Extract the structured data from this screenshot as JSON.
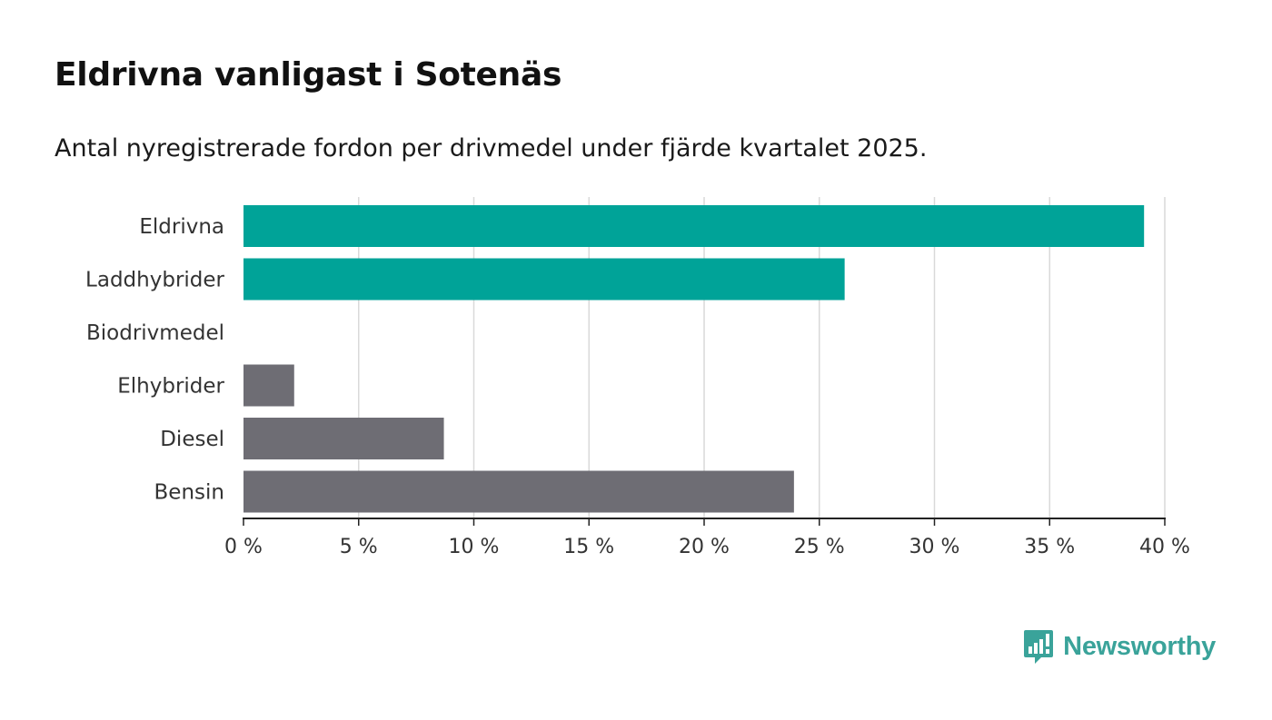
{
  "title": "Eldrivna vanligast i Sotenäs",
  "subtitle": "Antal nyregistrerade fordon per drivmedel under fjärde kvartalet 2025.",
  "brand": {
    "name": "Newsworthy",
    "color": "#3aa39a"
  },
  "colors": {
    "highlight": "#00a398",
    "neutral": "#6e6d74",
    "grid": "#d9d9d9",
    "axis": "#222222"
  },
  "chart_data": {
    "type": "bar",
    "orientation": "horizontal",
    "categories": [
      "Eldrivna",
      "Laddhybrider",
      "Biodrivmedel",
      "Elhybrider",
      "Diesel",
      "Bensin"
    ],
    "values": [
      39.1,
      26.1,
      0,
      2.2,
      8.7,
      23.9
    ],
    "highlighted": [
      true,
      true,
      true,
      false,
      false,
      false
    ],
    "xlim": [
      0,
      40
    ],
    "xticks": [
      0,
      5,
      10,
      15,
      20,
      25,
      30,
      35,
      40
    ],
    "xtick_labels": [
      "0 %",
      "5 %",
      "10 %",
      "15 %",
      "20 %",
      "25 %",
      "30 %",
      "35 %",
      "40 %"
    ],
    "unit": "%",
    "grid": true
  }
}
